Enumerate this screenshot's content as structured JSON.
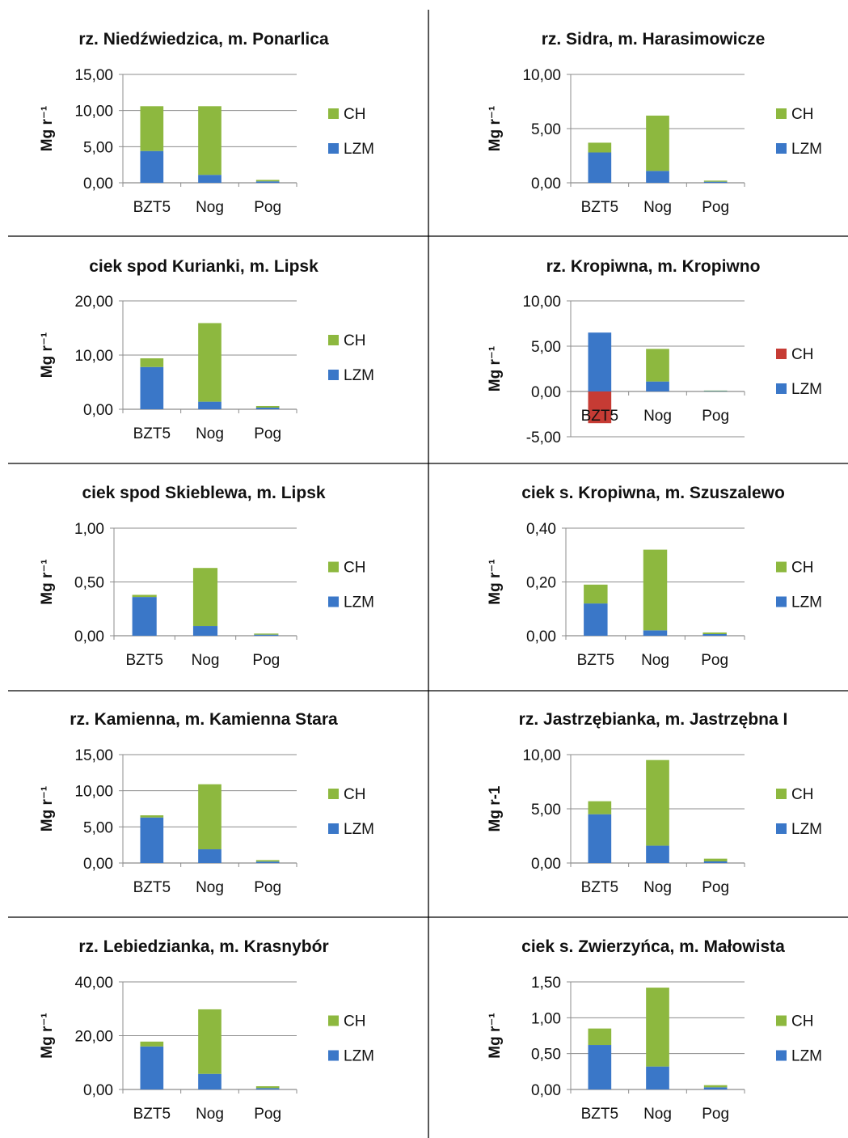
{
  "colors": {
    "CH": "#8DB83F",
    "LZM": "#3A77C8",
    "CH_negative": "#C63B34",
    "axis": "#8c8c8c",
    "grid": "#8c8c8c",
    "divider": "#000000"
  },
  "chart_data": [
    {
      "type": "bar",
      "stacked": true,
      "title": "rz. Niedźwiedzica, m. Ponarlica",
      "ylabel": "Mg r⁻¹",
      "categories": [
        "BZT5",
        "Nog",
        "Pog"
      ],
      "yticks": [
        "0,00",
        "5,00",
        "10,00",
        "15,00"
      ],
      "ylim": [
        0,
        15
      ],
      "series": [
        {
          "name": "LZM",
          "values": [
            4.4,
            1.1,
            0.2
          ]
        },
        {
          "name": "CH",
          "values": [
            6.2,
            9.5,
            0.2
          ]
        }
      ],
      "legend": [
        "CH",
        "LZM"
      ]
    },
    {
      "type": "bar",
      "stacked": true,
      "title": "rz. Sidra, m. Harasimowicze",
      "ylabel": "Mg r⁻¹",
      "categories": [
        "BZT5",
        "Nog",
        "Pog"
      ],
      "yticks": [
        "0,00",
        "5,00",
        "10,00"
      ],
      "ylim": [
        0,
        10
      ],
      "series": [
        {
          "name": "LZM",
          "values": [
            2.8,
            1.1,
            0.1
          ]
        },
        {
          "name": "CH",
          "values": [
            0.9,
            5.1,
            0.1
          ]
        }
      ],
      "legend": [
        "CH",
        "LZM"
      ]
    },
    {
      "type": "bar",
      "stacked": true,
      "title": "ciek spod Kurianki, m. Lipsk",
      "ylabel": "Mg r⁻¹",
      "categories": [
        "BZT5",
        "Nog",
        "Pog"
      ],
      "yticks": [
        "0,00",
        "10,00",
        "20,00"
      ],
      "ylim": [
        0,
        20
      ],
      "series": [
        {
          "name": "LZM",
          "values": [
            7.8,
            1.4,
            0.3
          ]
        },
        {
          "name": "CH",
          "values": [
            1.6,
            14.5,
            0.3
          ]
        }
      ],
      "legend": [
        "CH",
        "LZM"
      ]
    },
    {
      "type": "bar",
      "stacked": true,
      "title": "rz. Kropiwna, m. Kropiwno",
      "ylabel": "Mg r⁻¹",
      "categories": [
        "BZT5",
        "Nog",
        "Pog"
      ],
      "yticks": [
        "-5,00",
        "0,00",
        "5,00",
        "10,00"
      ],
      "ylim": [
        -5,
        10
      ],
      "series": [
        {
          "name": "LZM",
          "values": [
            6.5,
            1.1,
            0.05
          ]
        },
        {
          "name": "CH",
          "values": [
            -3.5,
            3.6,
            0.05
          ]
        }
      ],
      "legend": [
        "CH",
        "LZM"
      ],
      "legend_ch_color": "#C63B34"
    },
    {
      "type": "bar",
      "stacked": true,
      "title": "ciek spod Skieblewa, m. Lipsk",
      "ylabel": "Mg r⁻¹",
      "categories": [
        "BZT5",
        "Nog",
        "Pog"
      ],
      "yticks": [
        "0,00",
        "0,50",
        "1,00"
      ],
      "ylim": [
        0,
        1
      ],
      "series": [
        {
          "name": "LZM",
          "values": [
            0.36,
            0.09,
            0.01
          ]
        },
        {
          "name": "CH",
          "values": [
            0.02,
            0.54,
            0.01
          ]
        }
      ],
      "legend": [
        "CH",
        "LZM"
      ]
    },
    {
      "type": "bar",
      "stacked": true,
      "title": "ciek s. Kropiwna, m. Szuszalewo",
      "ylabel": "Mg r⁻¹",
      "categories": [
        "BZT5",
        "Nog",
        "Pog"
      ],
      "yticks": [
        "0,00",
        "0,20",
        "0,40"
      ],
      "ylim": [
        0,
        0.4
      ],
      "series": [
        {
          "name": "LZM",
          "values": [
            0.12,
            0.02,
            0.006
          ]
        },
        {
          "name": "CH",
          "values": [
            0.07,
            0.3,
            0.006
          ]
        }
      ],
      "legend": [
        "CH",
        "LZM"
      ]
    },
    {
      "type": "bar",
      "stacked": true,
      "title": "rz. Kamienna, m. Kamienna Stara",
      "ylabel": "Mg r⁻¹",
      "categories": [
        "BZT5",
        "Nog",
        "Pog"
      ],
      "yticks": [
        "0,00",
        "5,00",
        "10,00",
        "15,00"
      ],
      "ylim": [
        0,
        15
      ],
      "series": [
        {
          "name": "LZM",
          "values": [
            6.3,
            1.9,
            0.2
          ]
        },
        {
          "name": "CH",
          "values": [
            0.3,
            9.0,
            0.2
          ]
        }
      ],
      "legend": [
        "CH",
        "LZM"
      ]
    },
    {
      "type": "bar",
      "stacked": true,
      "title": "rz. Jastrzębianka, m. Jastrzębna I",
      "ylabel": "Mg r-1",
      "categories": [
        "BZT5",
        "Nog",
        "Pog"
      ],
      "yticks": [
        "0,00",
        "5,00",
        "10,00"
      ],
      "ylim": [
        0,
        10
      ],
      "series": [
        {
          "name": "LZM",
          "values": [
            4.5,
            1.6,
            0.15
          ]
        },
        {
          "name": "CH",
          "values": [
            1.2,
            7.9,
            0.25
          ]
        }
      ],
      "legend": [
        "CH",
        "LZM"
      ]
    },
    {
      "type": "bar",
      "stacked": true,
      "title": "rz. Lebiedzianka, m. Krasnybór",
      "ylabel": "Mg r⁻¹",
      "categories": [
        "BZT5",
        "Nog",
        "Pog"
      ],
      "yticks": [
        "0,00",
        "20,00",
        "40,00"
      ],
      "ylim": [
        0,
        40
      ],
      "series": [
        {
          "name": "LZM",
          "values": [
            16.0,
            5.8,
            0.5
          ]
        },
        {
          "name": "CH",
          "values": [
            1.8,
            24.0,
            0.7
          ]
        }
      ],
      "legend": [
        "CH",
        "LZM"
      ]
    },
    {
      "type": "bar",
      "stacked": true,
      "title": "ciek s. Zwierzyńca, m. Małowista",
      "ylabel": "Mg r⁻¹",
      "categories": [
        "BZT5",
        "Nog",
        "Pog"
      ],
      "yticks": [
        "0,00",
        "0,50",
        "1,00",
        "1,50"
      ],
      "ylim": [
        0,
        1.5
      ],
      "series": [
        {
          "name": "LZM",
          "values": [
            0.62,
            0.32,
            0.03
          ]
        },
        {
          "name": "CH",
          "values": [
            0.23,
            1.1,
            0.03
          ]
        }
      ],
      "legend": [
        "CH",
        "LZM"
      ]
    }
  ]
}
